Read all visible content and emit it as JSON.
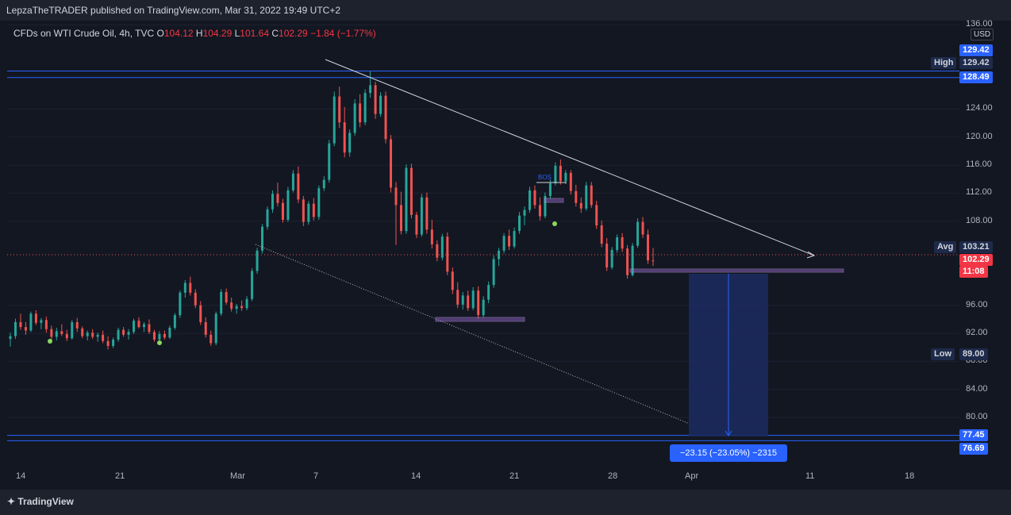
{
  "header": {
    "title": "LepzaTheTRADER published on TradingView.com, Mar 31, 2022 19:49 UTC+2"
  },
  "legend": {
    "symbol": "CFDs on WTI Crude Oil, 4h, TVC",
    "open_label": "O",
    "open": "104.12",
    "high_label": "H",
    "high": "104.29",
    "low_label": "L",
    "low": "101.64",
    "close_label": "C",
    "close": "102.29",
    "change": "−1.84 (−1.77%)"
  },
  "price_axis": {
    "currency": "USD",
    "ticks": [
      "136.00",
      "124.00",
      "120.00",
      "116.00",
      "112.00",
      "108.00",
      "96.00",
      "92.00",
      "88.00",
      "84.00",
      "80.00"
    ],
    "tick_values": [
      136,
      124,
      120,
      116,
      112,
      108,
      96,
      92,
      88,
      84,
      80
    ],
    "range": [
      70.5,
      136.5
    ]
  },
  "time_axis": {
    "labels": [
      "14",
      "21",
      "Mar",
      "7",
      "14",
      "21",
      "28",
      "Apr",
      "11",
      "18"
    ]
  },
  "price_tags": {
    "high_label": "High",
    "high_value": "129.42",
    "top_value": "129.42",
    "resistance_value": "128.49",
    "avg_label": "Avg",
    "avg_value": "103.21",
    "last_value": "102.29",
    "countdown": "11:08",
    "low_label": "Low",
    "low_value": "89.00",
    "target_value": "77.45",
    "bottom_value": "76.69"
  },
  "annotations": {
    "bos_label": "BOS",
    "measure_label": "−23.15 (−23.05%) −2315"
  },
  "footer": {
    "brand": "TradingView"
  },
  "colors": {
    "up": "#26a69a",
    "down": "#ef5350",
    "accent": "#2962ff",
    "background": "#131722"
  },
  "chart_data": {
    "type": "candlestick",
    "interval": "4h",
    "series_key": "o,h,l,c per 4h bar, approximate",
    "candles": [
      [
        91.2,
        92.1,
        90.1,
        91.6
      ],
      [
        91.6,
        94.1,
        91.2,
        93.6
      ],
      [
        93.6,
        94.8,
        92.5,
        92.9
      ],
      [
        92.9,
        93.6,
        91.8,
        92.4
      ],
      [
        92.4,
        95.1,
        92.2,
        94.8
      ],
      [
        94.8,
        95.3,
        93.2,
        93.5
      ],
      [
        93.5,
        94.2,
        92.6,
        93.9
      ],
      [
        93.9,
        94.4,
        92.1,
        92.6
      ],
      [
        92.6,
        93.1,
        91.1,
        91.5
      ],
      [
        91.5,
        92.8,
        91.0,
        92.3
      ],
      [
        92.3,
        93.3,
        91.6,
        91.9
      ],
      [
        91.9,
        92.5,
        90.9,
        91.3
      ],
      [
        91.3,
        93.9,
        91.1,
        93.6
      ],
      [
        93.6,
        94.2,
        92.2,
        92.7
      ],
      [
        92.7,
        93.0,
        91.3,
        91.6
      ],
      [
        91.6,
        92.4,
        91.0,
        92.1
      ],
      [
        92.1,
        92.6,
        91.2,
        91.5
      ],
      [
        91.5,
        92.1,
        90.8,
        91.8
      ],
      [
        91.8,
        92.4,
        90.6,
        90.9
      ],
      [
        90.9,
        91.6,
        89.7,
        90.2
      ],
      [
        90.2,
        91.4,
        89.9,
        91.1
      ],
      [
        91.1,
        92.8,
        90.8,
        92.5
      ],
      [
        92.5,
        92.9,
        91.5,
        91.8
      ],
      [
        91.8,
        92.6,
        91.1,
        92.2
      ],
      [
        92.2,
        94.1,
        91.9,
        93.8
      ],
      [
        93.8,
        94.3,
        92.7,
        92.9
      ],
      [
        92.9,
        93.6,
        92.2,
        93.3
      ],
      [
        93.3,
        94.0,
        91.9,
        92.2
      ],
      [
        92.2,
        92.5,
        90.8,
        91.1
      ],
      [
        91.1,
        92.3,
        90.6,
        91.9
      ],
      [
        91.9,
        92.4,
        91.1,
        91.4
      ],
      [
        91.4,
        93.1,
        91.2,
        92.8
      ],
      [
        92.8,
        94.9,
        92.5,
        94.6
      ],
      [
        94.6,
        98.1,
        94.2,
        97.8
      ],
      [
        97.8,
        99.6,
        97.1,
        99.2
      ],
      [
        99.2,
        100.1,
        97.4,
        97.8
      ],
      [
        97.8,
        98.3,
        95.6,
        96.0
      ],
      [
        96.0,
        96.6,
        93.2,
        93.6
      ],
      [
        93.6,
        94.3,
        91.4,
        91.8
      ],
      [
        91.8,
        92.4,
        90.2,
        90.6
      ],
      [
        90.6,
        95.1,
        90.3,
        94.8
      ],
      [
        94.8,
        98.3,
        94.5,
        97.9
      ],
      [
        97.9,
        98.4,
        96.1,
        96.4
      ],
      [
        96.4,
        97.1,
        95.1,
        95.5
      ],
      [
        95.5,
        96.2,
        94.8,
        95.9
      ],
      [
        95.9,
        96.7,
        95.2,
        95.6
      ],
      [
        95.6,
        97.3,
        95.3,
        96.9
      ],
      [
        96.9,
        101.3,
        96.6,
        100.9
      ],
      [
        100.9,
        104.2,
        100.5,
        103.8
      ],
      [
        103.8,
        107.6,
        103.4,
        107.2
      ],
      [
        107.2,
        110.1,
        106.8,
        109.7
      ],
      [
        109.7,
        112.4,
        109.2,
        111.9
      ],
      [
        111.9,
        113.5,
        110.1,
        110.6
      ],
      [
        110.6,
        111.2,
        107.8,
        108.2
      ],
      [
        108.2,
        112.9,
        107.9,
        112.4
      ],
      [
        112.4,
        115.3,
        112.1,
        114.8
      ],
      [
        114.8,
        115.8,
        110.6,
        111.1
      ],
      [
        111.1,
        111.6,
        107.3,
        107.9
      ],
      [
        107.9,
        110.9,
        107.5,
        110.5
      ],
      [
        110.5,
        111.3,
        108.1,
        108.6
      ],
      [
        108.6,
        113.1,
        108.2,
        112.7
      ],
      [
        112.7,
        114.4,
        112.3,
        113.9
      ],
      [
        113.9,
        119.6,
        113.5,
        119.1
      ],
      [
        119.1,
        126.5,
        118.7,
        125.8
      ],
      [
        125.8,
        127.2,
        121.3,
        122.1
      ],
      [
        122.1,
        124.3,
        117.1,
        117.8
      ],
      [
        117.8,
        121.1,
        117.2,
        120.6
      ],
      [
        120.6,
        125.4,
        120.2,
        124.8
      ],
      [
        124.8,
        126.1,
        121.4,
        122.1
      ],
      [
        122.1,
        126.8,
        121.7,
        126.3
      ],
      [
        126.3,
        129.42,
        125.6,
        127.4
      ],
      [
        127.4,
        127.9,
        122.6,
        123.3
      ],
      [
        123.3,
        126.4,
        122.9,
        125.9
      ],
      [
        125.9,
        126.5,
        119.1,
        119.7
      ],
      [
        119.7,
        120.3,
        112.1,
        112.8
      ],
      [
        112.8,
        113.6,
        104.6,
        110.3
      ],
      [
        110.3,
        112.2,
        106.1,
        106.6
      ],
      [
        106.6,
        116.1,
        106.2,
        115.6
      ],
      [
        115.6,
        116.2,
        108.4,
        108.9
      ],
      [
        108.9,
        109.3,
        105.6,
        106.1
      ],
      [
        106.1,
        111.9,
        105.8,
        111.4
      ],
      [
        111.4,
        112.1,
        106.2,
        106.8
      ],
      [
        106.8,
        108.2,
        104.1,
        104.7
      ],
      [
        104.7,
        105.3,
        102.3,
        102.8
      ],
      [
        102.8,
        106.2,
        102.4,
        105.8
      ],
      [
        105.8,
        106.4,
        100.3,
        100.8
      ],
      [
        100.8,
        101.4,
        97.6,
        98.2
      ],
      [
        98.2,
        99.3,
        95.6,
        96.1
      ],
      [
        96.1,
        97.9,
        95.4,
        97.4
      ],
      [
        97.4,
        98.1,
        95.2,
        95.6
      ],
      [
        95.6,
        98.6,
        95.3,
        98.1
      ],
      [
        98.1,
        98.7,
        94.1,
        94.6
      ],
      [
        94.6,
        97.3,
        94.3,
        96.8
      ],
      [
        96.8,
        99.4,
        96.3,
        98.9
      ],
      [
        98.9,
        103.1,
        98.5,
        102.6
      ],
      [
        102.6,
        104.2,
        101.6,
        103.8
      ],
      [
        103.8,
        106.3,
        103.4,
        105.9
      ],
      [
        105.9,
        106.8,
        103.9,
        104.4
      ],
      [
        104.4,
        107.1,
        104.1,
        106.6
      ],
      [
        106.6,
        109.3,
        106.2,
        108.8
      ],
      [
        108.8,
        110.1,
        107.4,
        109.6
      ],
      [
        109.6,
        112.9,
        109.2,
        112.4
      ],
      [
        112.4,
        113.1,
        109.8,
        110.3
      ],
      [
        110.3,
        111.4,
        108.1,
        108.7
      ],
      [
        108.7,
        112.1,
        108.4,
        111.6
      ],
      [
        111.6,
        113.9,
        111.2,
        113.4
      ],
      [
        113.4,
        116.4,
        113.1,
        115.9
      ],
      [
        115.9,
        116.8,
        113.2,
        113.7
      ],
      [
        113.7,
        115.3,
        113.3,
        114.9
      ],
      [
        114.9,
        115.3,
        111.8,
        112.3
      ],
      [
        112.3,
        113.2,
        110.1,
        110.6
      ],
      [
        110.6,
        111.4,
        109.2,
        109.8
      ],
      [
        109.8,
        113.6,
        109.5,
        113.1
      ],
      [
        113.1,
        113.6,
        109.9,
        110.3
      ],
      [
        110.3,
        110.9,
        106.9,
        107.4
      ],
      [
        107.4,
        108.1,
        104.3,
        104.8
      ],
      [
        104.8,
        105.6,
        100.9,
        101.4
      ],
      [
        101.4,
        104.3,
        101.1,
        103.9
      ],
      [
        103.9,
        106.1,
        103.5,
        105.7
      ],
      [
        105.7,
        106.3,
        103.6,
        104.1
      ],
      [
        104.1,
        104.6,
        99.8,
        100.3
      ],
      [
        100.3,
        104.9,
        100.1,
        104.5
      ],
      [
        104.5,
        108.4,
        104.2,
        107.9
      ],
      [
        107.9,
        108.6,
        105.6,
        106.1
      ],
      [
        106.1,
        106.8,
        101.9,
        102.4
      ],
      [
        102.4,
        104.2,
        101.6,
        102.29
      ]
    ],
    "indicators": {
      "avg_price": 103.21,
      "high_marker": 129.42,
      "low_marker": 89.0,
      "resistance_line": 128.49,
      "target_line": 77.45,
      "lower_line": 76.69
    },
    "projection": {
      "label": "−23.15 (−23.05%) −2315",
      "from": 100.6,
      "to": 77.45
    }
  }
}
